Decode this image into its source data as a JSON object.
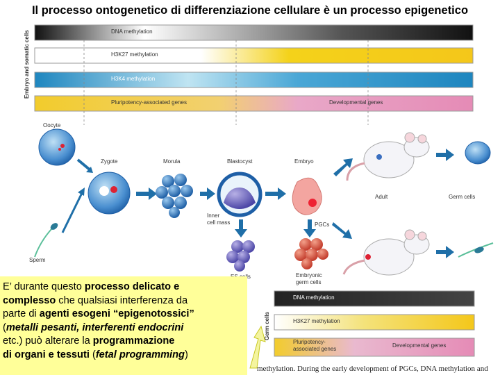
{
  "title": "Il processo ontogenetico di differenziazione cellulare è un processo epigenetico",
  "figure": {
    "side_label_top": "Embryo and somatic cells",
    "side_label_bottom": "Germ cells",
    "bars_top": [
      "DNA methylation",
      "H3K27 methylation",
      "H3K4 methylation"
    ],
    "pluri_label": "Pluripotency-associated genes",
    "dev_label": "Developmental genes",
    "bars_bottom": [
      "DNA methylation",
      "H3K27 methylation"
    ],
    "pluri_label_bottom_1": "Pluripotency-",
    "pluri_label_bottom_2": "associated genes",
    "dev_label_bottom": "Developmental genes",
    "stages": {
      "oocyte": "Oocyte",
      "sperm": "Sperm",
      "zygote": "Zygote",
      "morula": "Morula",
      "blastocyst": "Blastocyst",
      "embryo": "Embryo",
      "adult": "Adult",
      "germ_cells": "Germ cells",
      "inner_cell_mass_1": "Inner",
      "inner_cell_mass_2": "cell mass",
      "pgcs": "PGCs",
      "es_cells": "ES cells",
      "embryonic_germ_1": "Embryonic",
      "embryonic_germ_2": "germ cells"
    },
    "caption": "methylation. During the early development of PGCs, DNA methylation and"
  },
  "note": {
    "l1a": "E’ durante questo ",
    "l1b": "processo delicato e",
    "l2a": "complesso",
    "l2b": " che qualsiasi interferenza da",
    "l3a": "parte di ",
    "l3b": "agenti esogeni “epigenotossici”",
    "l4a": "(",
    "l4b": "metalli pesanti, interferenti endocrini",
    "l5": "etc.) può alterare la ",
    "l5b": "programmazione",
    "l6a": "di organi e  tessuti",
    "l6b": " (",
    "l6c": "fetal programming",
    "l6d": ")"
  },
  "colors": {
    "dna_dark": "#1a1a1a",
    "h3k27_yellow": "#f4d21a",
    "h3k4_blue": "#2a93c9",
    "pluri_yellow": "#f2cc2c",
    "dev_pink": "#e58bb6",
    "arrow_blue": "#1f6fa8",
    "note_bg": "#ffff99"
  }
}
